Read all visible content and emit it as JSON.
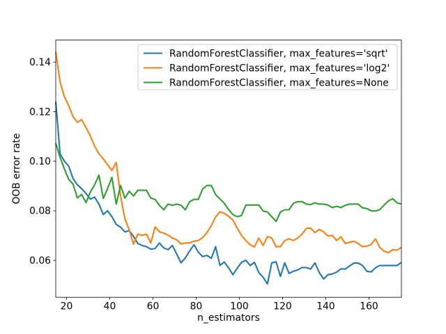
{
  "window": {
    "background": "#ffffff"
  },
  "chart_data": {
    "type": "line",
    "title": "",
    "xlabel": "n_estimators",
    "ylabel": "OOB error rate",
    "xlim": [
      15,
      175
    ],
    "ylim": [
      0.0451,
      0.1489
    ],
    "xticks": [
      20,
      40,
      60,
      80,
      100,
      120,
      140,
      160
    ],
    "yticks": [
      0.06,
      0.08,
      0.1,
      0.12,
      0.14
    ],
    "ytick_labels": [
      "0.06",
      "0.08",
      "0.10",
      "0.12",
      "0.14"
    ],
    "grid": false,
    "legend": {
      "position": "upper right",
      "border_color": "#cccccc",
      "background": "#ffffff",
      "opacity": 0.8
    },
    "x": [
      15,
      17,
      19,
      21,
      23,
      25,
      27,
      29,
      31,
      33,
      35,
      37,
      39,
      41,
      43,
      45,
      47,
      49,
      51,
      53,
      55,
      57,
      59,
      61,
      63,
      65,
      67,
      69,
      71,
      73,
      75,
      77,
      79,
      81,
      83,
      85,
      87,
      89,
      91,
      93,
      95,
      97,
      99,
      101,
      103,
      105,
      107,
      109,
      111,
      113,
      115,
      117,
      119,
      121,
      123,
      125,
      127,
      129,
      131,
      133,
      135,
      137,
      139,
      141,
      143,
      145,
      147,
      149,
      151,
      153,
      155,
      157,
      159,
      161,
      163,
      165,
      167,
      169,
      171,
      173,
      175
    ],
    "series": [
      {
        "key": "sqrt",
        "name": "RandomForestClassifier, max_features='sqrt'",
        "color": "#1f77b4",
        "values": [
          0.124,
          0.103,
          0.1,
          0.098,
          0.093,
          0.0905,
          0.0889,
          0.087,
          0.0847,
          0.0855,
          0.0827,
          0.0785,
          0.08,
          0.0776,
          0.0745,
          0.0734,
          0.0715,
          0.072,
          0.0697,
          0.0668,
          0.066,
          0.0655,
          0.0645,
          0.0648,
          0.067,
          0.065,
          0.0643,
          0.066,
          0.0625,
          0.059,
          0.061,
          0.0638,
          0.0663,
          0.0633,
          0.0615,
          0.062,
          0.0608,
          0.0655,
          0.058,
          0.0593,
          0.057,
          0.0542,
          0.0568,
          0.0592,
          0.06,
          0.0579,
          0.0592,
          0.055,
          0.0532,
          0.0505,
          0.059,
          0.0594,
          0.0535,
          0.059,
          0.0547,
          0.0556,
          0.0561,
          0.0571,
          0.0571,
          0.0565,
          0.059,
          0.055,
          0.0525,
          0.0542,
          0.0545,
          0.0552,
          0.0566,
          0.0565,
          0.0577,
          0.0589,
          0.0589,
          0.0579,
          0.0556,
          0.0553,
          0.057,
          0.0579,
          0.0579,
          0.0579,
          0.0579,
          0.0579,
          0.0592
        ]
      },
      {
        "key": "log2",
        "name": "RandomForestClassifier, max_features='log2'",
        "color": "#ff7f0e",
        "values": [
          0.1442,
          0.132,
          0.126,
          0.1225,
          0.118,
          0.1157,
          0.1168,
          0.1136,
          0.1103,
          0.1061,
          0.103,
          0.101,
          0.0986,
          0.0963,
          0.0995,
          0.086,
          0.0768,
          0.0724,
          0.0665,
          0.0706,
          0.07,
          0.0706,
          0.067,
          0.0735,
          0.0715,
          0.071,
          0.0702,
          0.069,
          0.0683,
          0.0666,
          0.067,
          0.0671,
          0.0677,
          0.068,
          0.0692,
          0.0712,
          0.074,
          0.0775,
          0.0796,
          0.079,
          0.0778,
          0.0763,
          0.073,
          0.07,
          0.068,
          0.0663,
          0.0654,
          0.069,
          0.066,
          0.0696,
          0.069,
          0.0655,
          0.0655,
          0.068,
          0.0687,
          0.068,
          0.069,
          0.0706,
          0.0729,
          0.073,
          0.0712,
          0.0725,
          0.0715,
          0.0698,
          0.0701,
          0.068,
          0.0695,
          0.0668,
          0.0673,
          0.0677,
          0.0668,
          0.0655,
          0.0657,
          0.0664,
          0.0687,
          0.0652,
          0.0637,
          0.0631,
          0.0643,
          0.0641,
          0.0652
        ]
      },
      {
        "key": "none",
        "name": "RandomForestClassifier, max_features=None",
        "color": "#2ca02c",
        "values": [
          0.1072,
          0.1016,
          0.0969,
          0.0927,
          0.0908,
          0.0852,
          0.0866,
          0.0833,
          0.0875,
          0.0905,
          0.0944,
          0.085,
          0.089,
          0.0935,
          0.0827,
          0.0902,
          0.0851,
          0.0879,
          0.086,
          0.0883,
          0.0883,
          0.0883,
          0.0851,
          0.0846,
          0.0822,
          0.0804,
          0.0827,
          0.0822,
          0.0827,
          0.0822,
          0.0804,
          0.0837,
          0.0846,
          0.0846,
          0.0888,
          0.0902,
          0.0902,
          0.0865,
          0.0848,
          0.083,
          0.0805,
          0.0785,
          0.0776,
          0.0781,
          0.0823,
          0.0823,
          0.0823,
          0.0823,
          0.0799,
          0.0795,
          0.0776,
          0.0757,
          0.0795,
          0.0804,
          0.0804,
          0.083,
          0.0837,
          0.0837,
          0.0827,
          0.0825,
          0.0832,
          0.0827,
          0.0827,
          0.0823,
          0.0813,
          0.0818,
          0.0813,
          0.0822,
          0.0827,
          0.0827,
          0.0827,
          0.0812,
          0.0809,
          0.08,
          0.0799,
          0.0805,
          0.0823,
          0.084,
          0.0849,
          0.0832,
          0.0827
        ]
      }
    ]
  }
}
